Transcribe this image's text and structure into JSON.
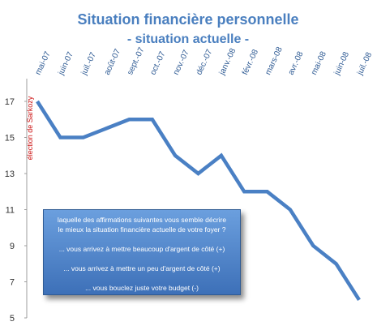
{
  "chart_data": {
    "type": "line",
    "title": "Situation financière personnelle",
    "subtitle": "-  situation actuelle -",
    "x": [
      "mai-07",
      "juin-07",
      "juil.-07",
      "août-07",
      "sept.-07",
      "oct.-07",
      "nov.-07",
      "déc.-07",
      "janv.-08",
      "févr.-08",
      "mars-08",
      "avr.-08",
      "mai-08",
      "juin-08",
      "juil.-08"
    ],
    "series": [
      {
        "values": [
          17,
          15,
          15,
          15.5,
          16,
          16,
          14,
          13,
          14,
          12,
          12,
          11,
          9,
          8,
          6
        ],
        "color": "#4a80c4"
      }
    ],
    "yticks": [
      "17",
      "15",
      "13",
      "11",
      "9",
      "7",
      "5"
    ],
    "ylim": [
      5,
      18
    ],
    "annotation": "élection de Sarkozy",
    "annotation_color": "#cc1111",
    "grid": false
  },
  "legend": {
    "question_line1": "laquelle des affirmations suivantes vous semble décrire",
    "question_line2": "le mieux la situation financière actuelle de votre foyer ?",
    "option1": "... vous arrivez à mettre beaucoup d'argent de côté (+)",
    "option2": "...  vous arrivez à mettre un peu d'argent de côté (+)",
    "option3": "... vous bouclez juste votre budget (-)"
  }
}
